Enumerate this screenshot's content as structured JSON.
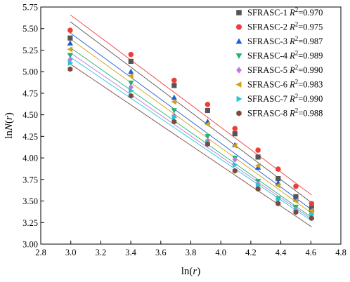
{
  "chart_data": {
    "type": "scatter",
    "xlabel_pre": "ln(",
    "xlabel_var": "r",
    "xlabel_post": ")",
    "ylabel_pre": "ln",
    "ylabel_var": "N",
    "ylabel_mid": "(",
    "ylabel_var2": "r",
    "ylabel_post": ")",
    "xlim": [
      2.8,
      4.8
    ],
    "ylim": [
      3.0,
      5.75
    ],
    "xticks": [
      "2.8",
      "3.0",
      "3.2",
      "3.4",
      "3.6",
      "3.8",
      "4.0",
      "4.2",
      "4.4",
      "4.6",
      "4.8"
    ],
    "yticks": [
      "3.00",
      "3.25",
      "3.50",
      "3.75",
      "4.00",
      "4.25",
      "4.50",
      "4.75",
      "5.00",
      "5.25",
      "5.50",
      "5.75"
    ],
    "grid": false,
    "legend_position": "top-right",
    "x": [
      2.996,
      3.401,
      3.689,
      3.912,
      4.094,
      4.248,
      4.382,
      4.5,
      4.605
    ],
    "series": [
      {
        "name": "SFRASC-1",
        "r2_prefix": "R",
        "r2_exp": "2",
        "r2_value": "=0.970",
        "marker": "square",
        "color": "#555555",
        "values": [
          5.39,
          5.12,
          4.84,
          4.55,
          4.28,
          4.01,
          3.76,
          3.55,
          3.42
        ],
        "fit": [
          5.58,
          3.48
        ]
      },
      {
        "name": "SFRASC-2",
        "r2_prefix": "R",
        "r2_exp": "2",
        "r2_value": "=0.975",
        "marker": "circle",
        "color": "#ee3b3b",
        "values": [
          5.48,
          5.2,
          4.9,
          4.62,
          4.34,
          4.09,
          3.87,
          3.67,
          3.47
        ],
        "fit": [
          5.66,
          3.57
        ]
      },
      {
        "name": "SFRASC-3",
        "r2_prefix": "R",
        "r2_exp": "2",
        "r2_value": "=0.987",
        "marker": "triangle-up",
        "color": "#1a5fd6",
        "values": [
          5.33,
          5.0,
          4.7,
          4.42,
          4.15,
          3.89,
          3.71,
          3.52,
          3.4
        ],
        "fit": [
          5.45,
          3.4
        ]
      },
      {
        "name": "SFRASC-4",
        "r2_prefix": "R",
        "r2_exp": "2",
        "r2_value": "=0.989",
        "marker": "triangle-down",
        "color": "#1fb56a",
        "values": [
          5.19,
          4.87,
          4.55,
          4.25,
          4.0,
          3.73,
          3.53,
          3.43,
          3.37
        ],
        "fit": [
          5.28,
          3.31
        ]
      },
      {
        "name": "SFRASC-5",
        "r2_prefix": "R",
        "r2_exp": "2",
        "r2_value": "=0.990",
        "marker": "diamond",
        "color": "#c277e0",
        "values": [
          5.14,
          4.82,
          4.49,
          4.2,
          3.98,
          3.7,
          3.52,
          3.4,
          3.35
        ],
        "fit": [
          5.22,
          3.29
        ]
      },
      {
        "name": "SFRASC-6",
        "r2_prefix": "R",
        "r2_exp": "2",
        "r2_value": "=0.983",
        "marker": "triangle-left",
        "color": "#d4a017",
        "values": [
          5.26,
          4.95,
          4.65,
          4.39,
          4.14,
          3.91,
          3.68,
          3.5,
          3.39
        ],
        "fit": [
          5.38,
          3.36
        ]
      },
      {
        "name": "SFRASC-7",
        "r2_prefix": "R",
        "r2_exp": "2",
        "r2_value": "=0.990",
        "marker": "triangle-right",
        "color": "#1ec8d6",
        "values": [
          5.1,
          4.78,
          4.47,
          4.18,
          3.92,
          3.68,
          3.52,
          3.39,
          3.34
        ],
        "fit": [
          5.17,
          3.27
        ]
      },
      {
        "name": "SFRASC-8",
        "r2_prefix": "R",
        "r2_exp": "2",
        "r2_value": "=0.988",
        "marker": "hexagon",
        "color": "#7a4a3a",
        "values": [
          5.03,
          4.72,
          4.42,
          4.16,
          3.85,
          3.64,
          3.47,
          3.37,
          3.3
        ],
        "fit": [
          5.09,
          3.2
        ]
      }
    ]
  }
}
